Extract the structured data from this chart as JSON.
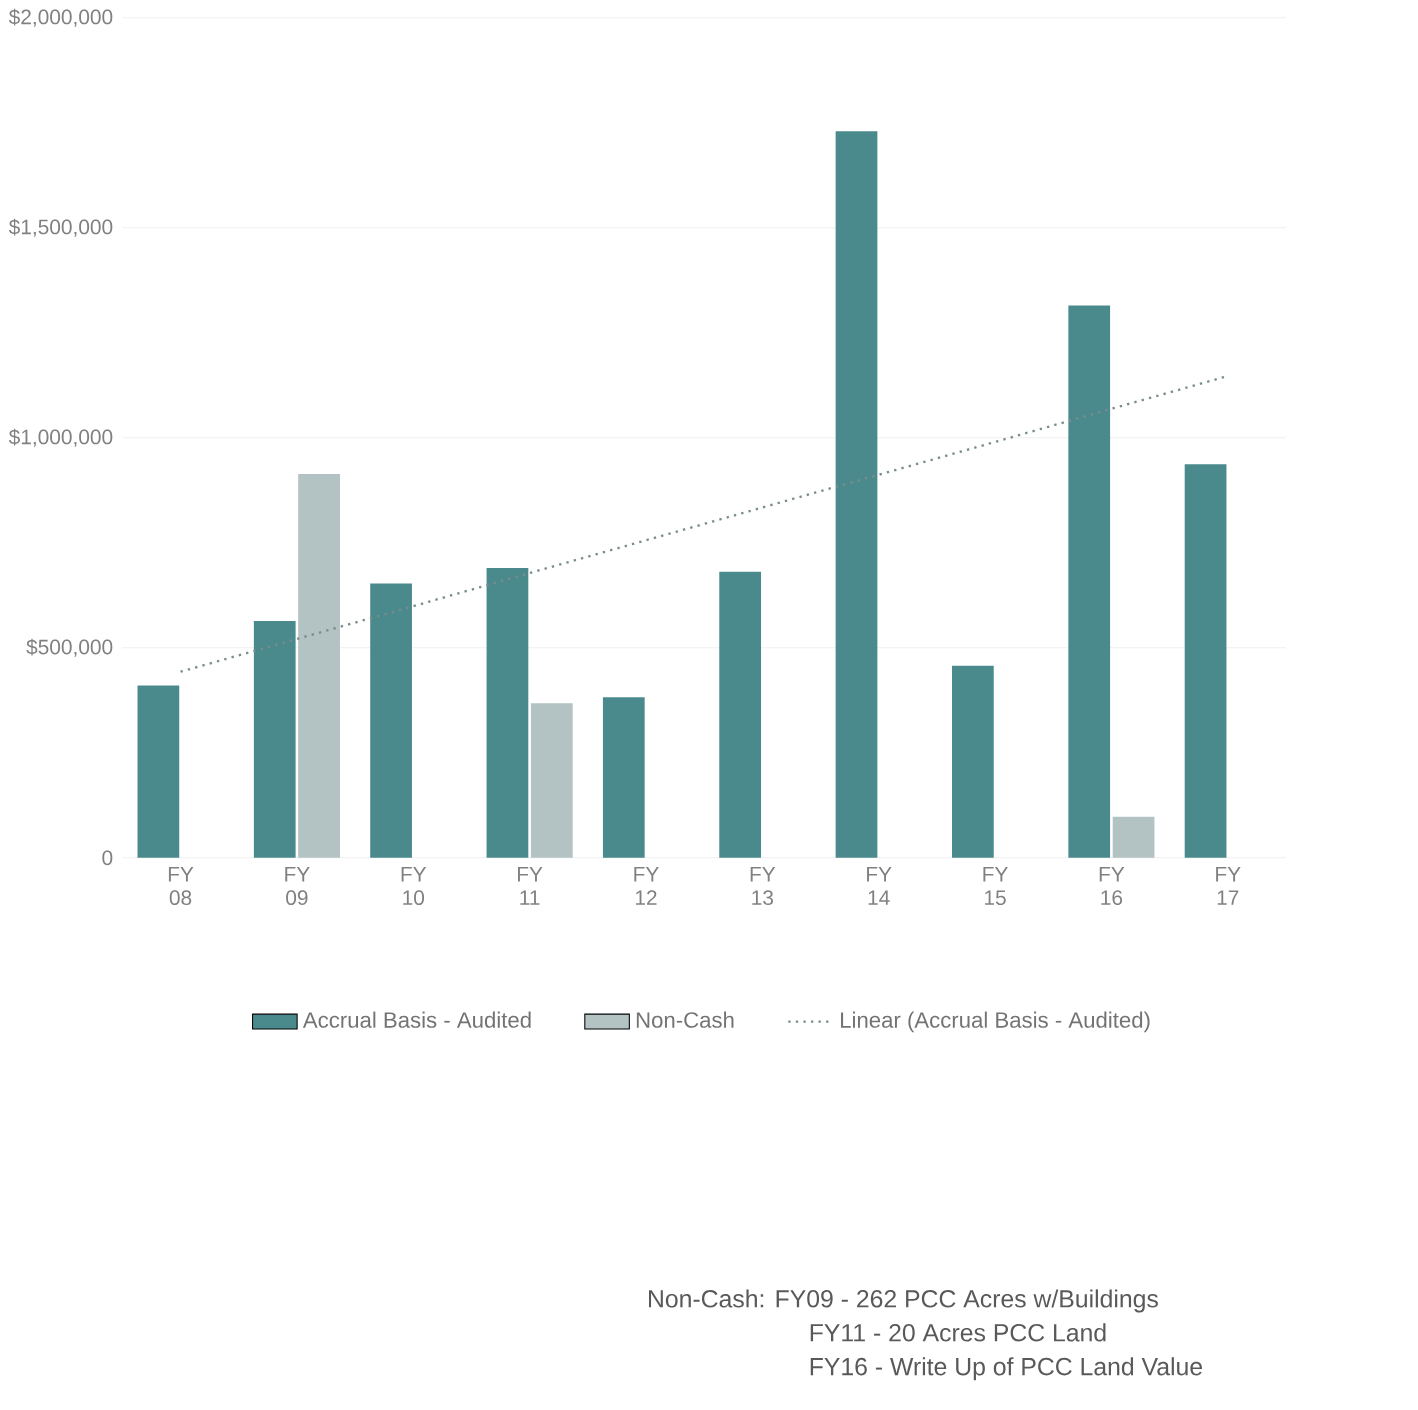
{
  "chart_data": {
    "type": "bar",
    "categories": [
      "FY 08",
      "FY 09",
      "FY 10",
      "FY 11",
      "FY 12",
      "FY 13",
      "FY 14",
      "FY 15",
      "FY 16",
      "FY 17"
    ],
    "series": [
      {
        "name": "Accrual Basis - Audited",
        "color": "#4a8a8c",
        "values": [
          410000,
          564000,
          653000,
          690000,
          382000,
          681000,
          1730000,
          457000,
          1315000,
          937000
        ]
      },
      {
        "name": "Non-Cash",
        "color": "#b3c2c2",
        "values": [
          null,
          914000,
          null,
          368000,
          null,
          null,
          null,
          null,
          98000,
          null
        ]
      },
      {
        "name": "Linear (Accrual Basis - Audited)",
        "type": "line",
        "color": "#7a8c8c",
        "line_style": "dotted",
        "values": [
          443000,
          521000,
          599000,
          678000,
          756000,
          834000,
          912000,
          990000,
          1069000,
          1147000
        ]
      }
    ],
    "ylim": [
      0,
      2000000
    ],
    "yticks": [
      0,
      {
        "value": 500000,
        "label": "$500,000"
      },
      {
        "value": 1000000,
        "label": "$1,000,000"
      },
      {
        "value": 1500000,
        "label": "$1,500,000"
      },
      {
        "value": 2000000,
        "label": "$2,000,000"
      }
    ],
    "grid": "y",
    "legend": "bottom",
    "annotations": [
      "Non-Cash: FY09 - 262 PCC Acres w/Buildings",
      "FY11 - 20 Acres PCC Land",
      "FY16 - Write Up of PCC Land Value"
    ]
  }
}
